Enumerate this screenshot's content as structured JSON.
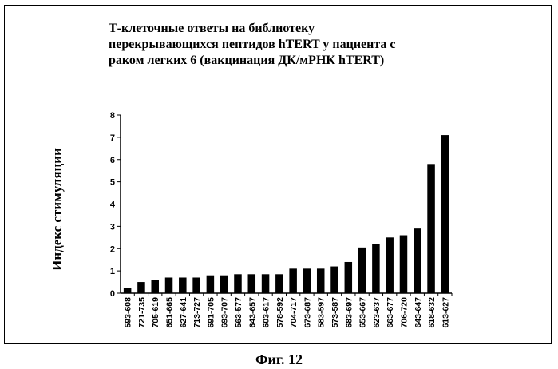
{
  "chart_data": {
    "type": "bar",
    "title_lines": [
      "Т-клеточные ответы на библиотеку",
      "перекрывающихся пептидов hTERT у пациента с",
      "раком легких 6 (вакцинация ДК/мРНК hTERT)"
    ],
    "ylabel": "Индекс стимуляции",
    "xlabel": "",
    "ylim": [
      0,
      8
    ],
    "yticks": [
      "0",
      "1",
      "2",
      "3",
      "4",
      "5",
      "6",
      "7",
      "8"
    ],
    "grid": false,
    "legend": "none",
    "bar_color": "#000000",
    "categories": [
      "593-608",
      "721-735",
      "705-619",
      "651-665",
      "627-641",
      "713-727",
      "691-705",
      "693-707",
      "563-577",
      "643-657",
      "603-617",
      "578-592",
      "704-717",
      "673-687",
      "583-597",
      "573-587",
      "683-697",
      "653-667",
      "623-637",
      "663-677",
      "706-720",
      "643-647",
      "618-632",
      "613-627"
    ],
    "values": [
      0.25,
      0.5,
      0.6,
      0.7,
      0.7,
      0.7,
      0.8,
      0.8,
      0.85,
      0.85,
      0.85,
      0.85,
      1.1,
      1.1,
      1.1,
      1.2,
      1.4,
      2.05,
      2.2,
      2.5,
      2.6,
      2.9,
      5.8,
      7.1
    ]
  },
  "caption": "Фиг. 12"
}
